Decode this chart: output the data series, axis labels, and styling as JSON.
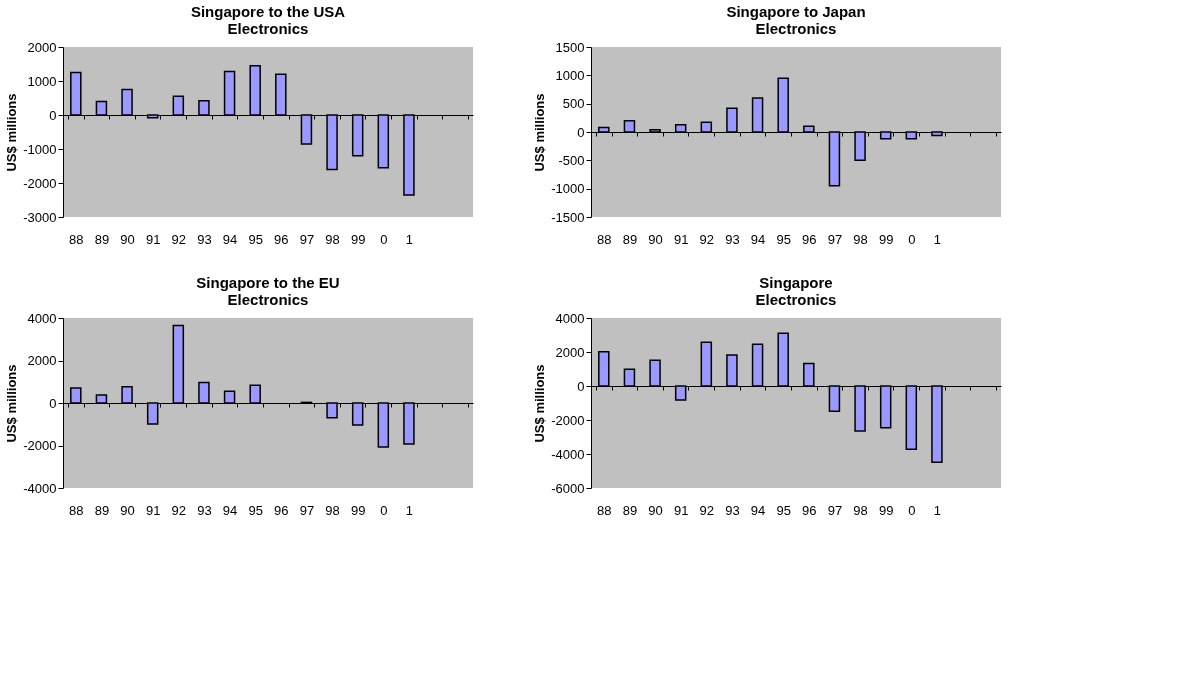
{
  "chart_data": [
    {
      "type": "bar",
      "title": "Singapore to the USA\nElectronics",
      "ylabel": "US$ millions",
      "categories": [
        "88",
        "89",
        "90",
        "91",
        "92",
        "93",
        "94",
        "95",
        "96",
        "97",
        "98",
        "99",
        "0",
        "1",
        null,
        null
      ],
      "color": "#9999ff",
      "values": [
        1250,
        400,
        750,
        -80,
        550,
        420,
        1280,
        1450,
        1200,
        -850,
        -1600,
        -1200,
        -1550,
        -2350,
        null,
        null
      ],
      "ylim": [
        -3000,
        2000
      ],
      "yticks": [
        -3000,
        -2000,
        -1000,
        0,
        1000,
        2000
      ]
    },
    {
      "type": "bar",
      "title": "Singapore to Japan\nElectronics",
      "ylabel": "US$ millions",
      "categories": [
        "88",
        "89",
        "90",
        "91",
        "92",
        "93",
        "94",
        "95",
        "96",
        "97",
        "98",
        "99",
        "0",
        "1",
        null,
        null
      ],
      "color": "#9999ff",
      "values": [
        80,
        200,
        40,
        130,
        170,
        420,
        600,
        950,
        100,
        -950,
        -500,
        -120,
        -120,
        -60,
        null,
        null
      ],
      "ylim": [
        -1500,
        1500
      ],
      "yticks": [
        -1500,
        -1000,
        -500,
        0,
        500,
        1000,
        1500
      ]
    },
    {
      "type": "bar",
      "title": "Singapore to the EU\nElectronics",
      "ylabel": "US$ millions",
      "categories": [
        "88",
        "89",
        "90",
        "91",
        "92",
        "93",
        "94",
        "95",
        "96",
        "97",
        "98",
        "99",
        "0",
        "1",
        null,
        null
      ],
      "color": "#9999ff",
      "values": [
        710,
        380,
        760,
        -990,
        3650,
        960,
        550,
        840,
        null,
        30,
        -690,
        -1040,
        -2070,
        -1930,
        null,
        null
      ],
      "ylim": [
        -4000,
        4000
      ],
      "yticks": [
        -4000,
        -2000,
        0,
        2000,
        4000
      ]
    },
    {
      "type": "bar",
      "title": "Singapore\nElectronics",
      "ylabel": "US$ millions",
      "categories": [
        "88",
        "89",
        "90",
        "91",
        "92",
        "93",
        "94",
        "95",
        "96",
        "97",
        "98",
        "99",
        "0",
        "1",
        null,
        null
      ],
      "color": "#9999ff",
      "values": [
        2020,
        990,
        1520,
        -830,
        2570,
        1820,
        2460,
        3100,
        1330,
        -1490,
        -2640,
        -2460,
        -3720,
        -4480,
        null,
        null
      ],
      "ylim": [
        -6000,
        4000
      ],
      "yticks": [
        -6000,
        -4000,
        -2000,
        0,
        2000,
        4000
      ]
    }
  ]
}
